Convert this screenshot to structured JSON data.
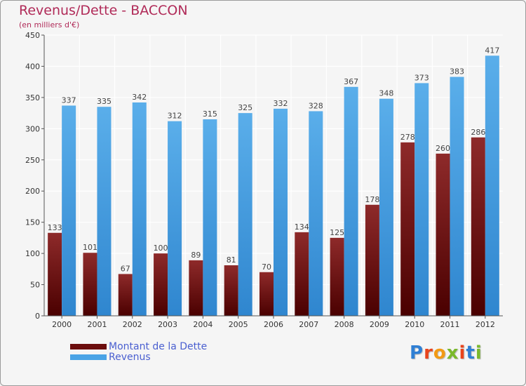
{
  "chart_data": {
    "type": "bar",
    "title": "Revenus/Dette - BACCON",
    "subtitle": "(en milliers d'€)",
    "xlabel": "",
    "ylabel": "",
    "categories": [
      "2000",
      "2001",
      "2002",
      "2003",
      "2004",
      "2005",
      "2006",
      "2007",
      "2008",
      "2009",
      "2010",
      "2011",
      "2012"
    ],
    "series": [
      {
        "name": "Montant de la Dette",
        "values": [
          133,
          101,
          67,
          100,
          89,
          81,
          70,
          134,
          125,
          178,
          278,
          260,
          286
        ],
        "color": "#7a1414"
      },
      {
        "name": "Revenus",
        "values": [
          337,
          335,
          342,
          312,
          315,
          325,
          332,
          328,
          367,
          348,
          373,
          383,
          417
        ],
        "color": "#4aa3e6"
      }
    ],
    "ylim": [
      0,
      450
    ],
    "yticks": [
      0,
      50,
      100,
      150,
      200,
      250,
      300,
      350,
      400,
      450
    ],
    "grid": true,
    "legend": "bottom-left"
  },
  "colors": {
    "title": "#b02a58",
    "legend_text": "#4a5fd0",
    "grid": "#ffffff",
    "plot_bg": "#f5f5f5"
  },
  "logo": {
    "text": "Proxiti",
    "letter_colors": [
      "#2f7fd4",
      "#e8441c",
      "#f29a14",
      "#7ab92b",
      "#e8441c",
      "#2f7fd4",
      "#7ab92b"
    ]
  }
}
